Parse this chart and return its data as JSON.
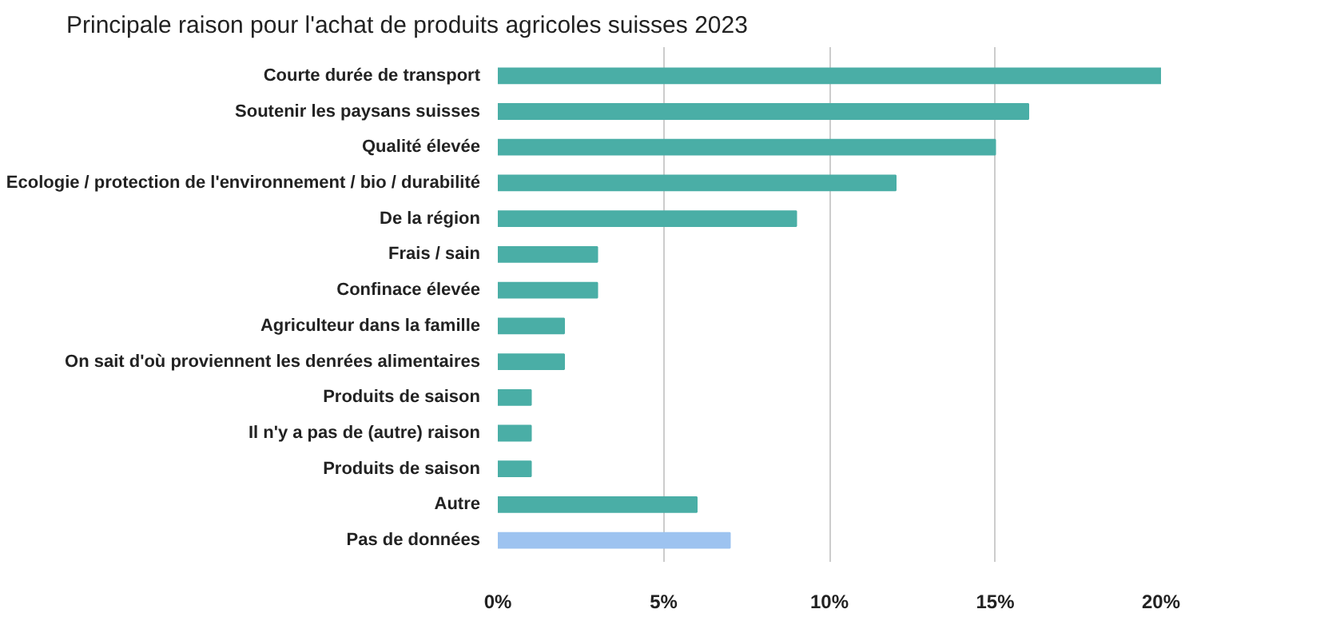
{
  "chart_data": {
    "type": "bar",
    "orientation": "horizontal",
    "title": "Principale raison pour l'achat de produits agricoles suisses 2023",
    "categories": [
      "Courte durée de transport",
      "Soutenir les paysans suisses",
      "Qualité élevée",
      "Ecologie / protection de l'environnement / bio / durabilité",
      "De la région",
      "Frais / sain",
      "Confinace élevée",
      "Agriculteur dans la famille",
      "On sait d'où proviennent les denrées alimentaires",
      "Produits de saison",
      "Il n'y a pas de (autre) raison",
      "Produits de saison",
      "Autre",
      "Pas de données"
    ],
    "values": [
      20,
      16,
      15,
      12,
      9,
      3,
      3,
      2,
      2,
      1,
      1,
      1,
      6,
      7
    ],
    "colors": [
      "#4aaea6",
      "#4aaea6",
      "#4aaea6",
      "#4aaea6",
      "#4aaea6",
      "#4aaea6",
      "#4aaea6",
      "#4aaea6",
      "#4aaea6",
      "#4aaea6",
      "#4aaea6",
      "#4aaea6",
      "#4aaea6",
      "#9dc3f0"
    ],
    "xlim": [
      0,
      20
    ],
    "xticks": [
      {
        "value": 0,
        "label": "0%"
      },
      {
        "value": 5,
        "label": "5%"
      },
      {
        "value": 10,
        "label": "10%"
      },
      {
        "value": 15,
        "label": "15%"
      },
      {
        "value": 20,
        "label": "20%"
      }
    ],
    "grid": "x"
  }
}
